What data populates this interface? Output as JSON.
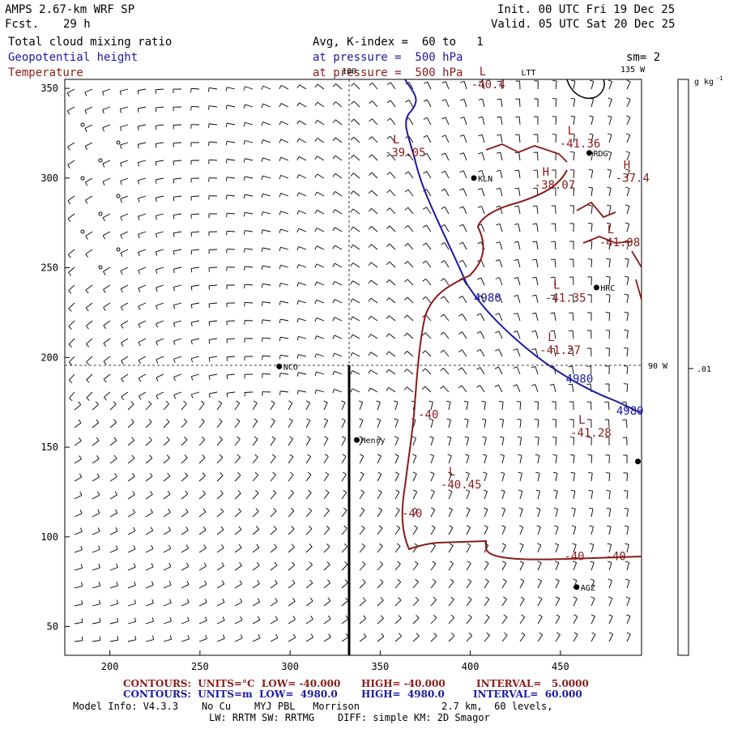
{
  "header": {
    "model": "AMPS 2.67-km WRF SP",
    "fcst_label": "Fcst.",
    "fcst_value": "29 h",
    "init": "Init. 00 UTC Fri 19 Dec 25",
    "valid": "Valid. 05 UTC Sat 20 Dec 25",
    "field1": "Total cloud mixing ratio",
    "field1_detail": "Avg, K-index =  60 to   1",
    "field2": "Geopotential height",
    "field2_detail": "at pressure =  500 hPa",
    "field3": "Temperature",
    "field3_detail": "at pressure =  500 hPa",
    "smooth": "sm= 2"
  },
  "colors": {
    "geopotential": "#1a1aa0",
    "temperature": "#8a1a1a"
  },
  "map": {
    "x_ticks": [
      "200",
      "250",
      "300",
      "350",
      "400",
      "450"
    ],
    "y_ticks": [
      "350",
      "300",
      "250",
      "200",
      "150",
      "100",
      "50"
    ],
    "meridian_labels": [
      "180",
      "135 W",
      "90 W"
    ],
    "stations": [
      {
        "name": "NCO",
        "x": 294,
        "y": 195
      },
      {
        "name": "Henry",
        "x": 337,
        "y": 154
      },
      {
        "name": "KLN",
        "x": 402,
        "y": 300
      },
      {
        "name": "LTT",
        "x": 426,
        "y": 359
      },
      {
        "name": "RDG",
        "x": 466,
        "y": 314
      },
      {
        "name": "HRC",
        "x": 470,
        "y": 239
      },
      {
        "name": "AGZ",
        "x": 459,
        "y": 72
      },
      {
        "name": "",
        "x": 493,
        "y": 142
      }
    ],
    "temperature_labels": [
      {
        "marker": "L",
        "value": "-40.4",
        "x": 405,
        "y": 350
      },
      {
        "marker": "L",
        "value": "-41.36",
        "x": 454,
        "y": 317
      },
      {
        "marker": "L",
        "value": "-39.05",
        "x": 357,
        "y": 312
      },
      {
        "marker": "H",
        "value": "-38.07",
        "x": 440,
        "y": 294
      },
      {
        "marker": "H",
        "value": "-37.4",
        "x": 485,
        "y": 298
      },
      {
        "marker": "L",
        "value": "-41.08",
        "x": 476,
        "y": 262
      },
      {
        "marker": "L",
        "value": "-41.35",
        "x": 446,
        "y": 231
      },
      {
        "marker": "L",
        "value": "-41.27",
        "x": 443,
        "y": 202
      },
      {
        "marker": "L",
        "value": "-41.28",
        "x": 460,
        "y": 156
      },
      {
        "marker": "L",
        "value": "-40.45",
        "x": 388,
        "y": 127
      }
    ],
    "temperature_contour_labels": [
      {
        "value": "-40",
        "x": 371,
        "y": 166
      },
      {
        "value": "-40",
        "x": 362,
        "y": 111
      },
      {
        "value": "-40",
        "x": 452,
        "y": 87
      },
      {
        "value": "-40",
        "x": 475,
        "y": 87
      }
    ],
    "height_contour_labels": [
      {
        "value": "4980",
        "x": 402,
        "y": 231
      },
      {
        "value": "4980",
        "x": 453,
        "y": 186
      },
      {
        "value": "4980",
        "x": 481,
        "y": 168
      }
    ],
    "colorbar_unit": "g kg",
    "colorbar_unit_sup": "-1",
    "colorbar_tick": ".01"
  },
  "footer": {
    "red_contours": "CONTOURS:  UNITS=°C  LOW= -40.000",
    "red_high": "HIGH= -40.000",
    "red_interval": "INTERVAL=   5.0000",
    "blue_contours": "CONTOURS:  UNITS=m  LOW=  4980.0",
    "blue_high": "HIGH=  4980.0",
    "blue_interval": "INTERVAL=  60.000",
    "model_info": "Model Info: V4.3.3    No Cu    MYJ PBL   Morrison              2.7 km,  60 levels,",
    "model_info2": "LW: RRTM SW: RRTMG    DIFF: simple KM: 2D Smagor"
  }
}
